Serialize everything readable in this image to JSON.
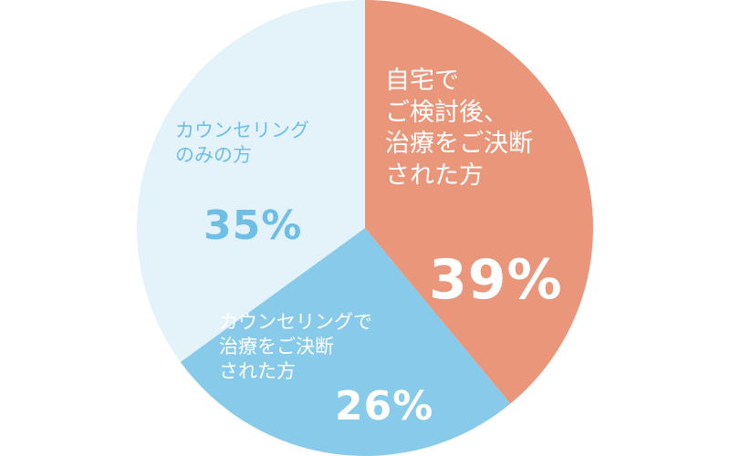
{
  "chart_data": {
    "type": "pie",
    "title": "",
    "start": "top",
    "direction": "clockwise",
    "slices": [
      {
        "label": "自宅で\nご検討後、\n治療をご決断\nされた方",
        "value": 39,
        "value_label": "39%",
        "color": "#E9967A",
        "text_color": "#ffffff"
      },
      {
        "label": "カウンセリングで\n治療をご決断\nされた方",
        "value": 26,
        "value_label": "26%",
        "color": "#88CAEA",
        "text_color": "#ffffff"
      },
      {
        "label": "カウンセリング\nのみの方",
        "value": 35,
        "value_label": "35%",
        "color": "#E4F2FA",
        "text_color": "#6FBEE6"
      }
    ]
  }
}
